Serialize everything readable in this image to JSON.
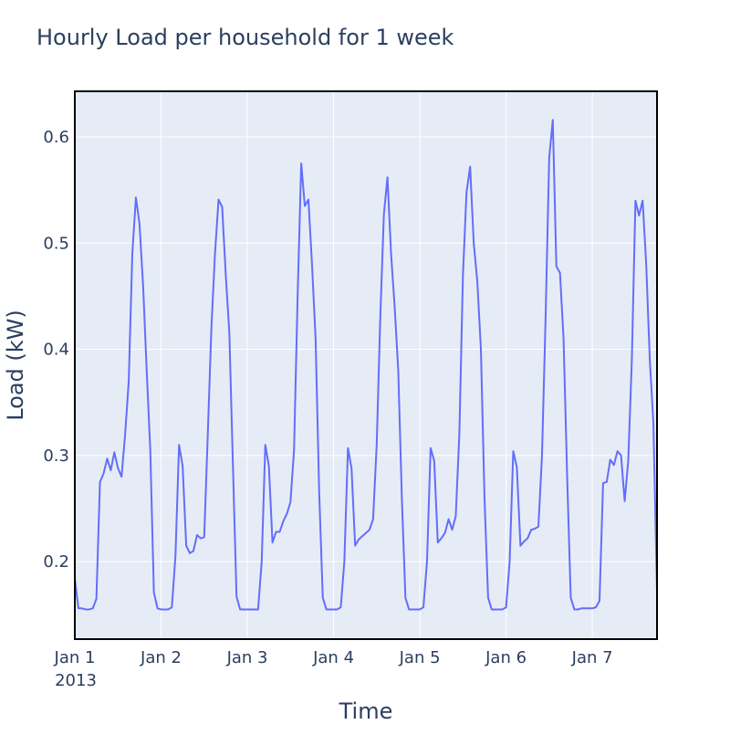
{
  "chart_data": {
    "type": "line",
    "title": "Hourly Load per household for 1 week",
    "xlabel": "Time",
    "ylabel": "Load (kW)",
    "xlim": [
      "2013-01-01 00:00",
      "2013-01-07 23:00"
    ],
    "ylim": [
      0.127,
      0.643
    ],
    "x_ticks": [
      "Jan 1",
      "Jan 2",
      "Jan 3",
      "Jan 4",
      "Jan 5",
      "Jan 6",
      "Jan 7"
    ],
    "x_tick_year": "2013",
    "y_ticks": [
      "0.2",
      "0.3",
      "0.4",
      "0.5",
      "0.6"
    ],
    "y_tick_values": [
      0.2,
      0.3,
      0.4,
      0.5,
      0.6
    ],
    "grid": true,
    "legend": "none",
    "colors": {
      "line": "#636efa",
      "plot_bg": "#e5ecf6",
      "grid": "#ffffff",
      "text": "#2a3f5f"
    },
    "x_start": "2013-01-01 00:00",
    "x_step": "1 hour",
    "series": [
      {
        "values": [
          0.184,
          0.156,
          0.156,
          0.155,
          0.155,
          0.156,
          0.165,
          0.275,
          0.283,
          0.297,
          0.286,
          0.303,
          0.288,
          0.28,
          0.32,
          0.37,
          0.49,
          0.543,
          0.518,
          0.46,
          0.38,
          0.305,
          0.171,
          0.156,
          0.155,
          0.155,
          0.155,
          0.157,
          0.205,
          0.31,
          0.29,
          0.215,
          0.208,
          0.21,
          0.225,
          0.222,
          0.223,
          0.32,
          0.42,
          0.49,
          0.541,
          0.534,
          0.47,
          0.415,
          0.29,
          0.167,
          0.155,
          0.155,
          0.155,
          0.155,
          0.155,
          0.155,
          0.2,
          0.31,
          0.29,
          0.218,
          0.228,
          0.228,
          0.238,
          0.245,
          0.256,
          0.305,
          0.45,
          0.575,
          0.535,
          0.541,
          0.48,
          0.41,
          0.265,
          0.166,
          0.155,
          0.155,
          0.155,
          0.155,
          0.157,
          0.2,
          0.307,
          0.288,
          0.215,
          0.221,
          0.224,
          0.227,
          0.23,
          0.24,
          0.31,
          0.43,
          0.527,
          0.562,
          0.49,
          0.44,
          0.38,
          0.26,
          0.166,
          0.155,
          0.155,
          0.155,
          0.155,
          0.157,
          0.2,
          0.307,
          0.295,
          0.218,
          0.222,
          0.227,
          0.24,
          0.23,
          0.243,
          0.32,
          0.47,
          0.548,
          0.572,
          0.5,
          0.464,
          0.4,
          0.26,
          0.166,
          0.155,
          0.155,
          0.155,
          0.155,
          0.157,
          0.2,
          0.304,
          0.289,
          0.215,
          0.219,
          0.222,
          0.23,
          0.231,
          0.233,
          0.3,
          0.43,
          0.58,
          0.616,
          0.478,
          0.472,
          0.41,
          0.28,
          0.166,
          0.155,
          0.155,
          0.156,
          0.156,
          0.156,
          0.156,
          0.157,
          0.163,
          0.274,
          0.275,
          0.296,
          0.291,
          0.304,
          0.3,
          0.257,
          0.295,
          0.39,
          0.54,
          0.526,
          0.54,
          0.48,
          0.39,
          0.33,
          0.172
        ]
      }
    ]
  }
}
